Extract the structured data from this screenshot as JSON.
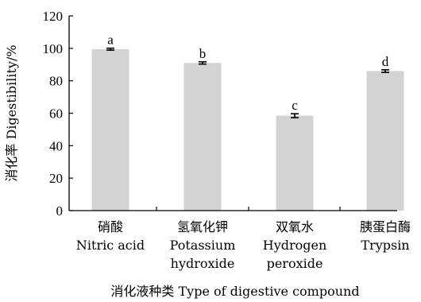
{
  "chart_data": {
    "type": "bar",
    "title": "",
    "categories": [
      {
        "zh": "硝酸",
        "en": [
          "Nitric acid"
        ]
      },
      {
        "zh": "氢氧化钾",
        "en": [
          "Potassium",
          "hydroxide"
        ]
      },
      {
        "zh": "双氧水",
        "en": [
          "Hydrogen",
          "peroxide"
        ]
      },
      {
        "zh": "胰蛋白酶",
        "en": [
          "Trypsin"
        ]
      }
    ],
    "values": [
      99.5,
      91,
      58.5,
      86
    ],
    "errors": [
      0.6,
      0.7,
      1.2,
      0.8
    ],
    "significance_letters": [
      "a",
      "b",
      "c",
      "d"
    ],
    "xlabel": "消化液种类 Type of digestive compound",
    "ylabel": "消化率 Digestibility/%",
    "ylim": [
      0,
      120
    ],
    "yticks": [
      0,
      20,
      40,
      60,
      80,
      100,
      120
    ],
    "grid": false,
    "legend": "none",
    "bar_color": "#d3d3d3",
    "errorbar_color": "#000000"
  }
}
